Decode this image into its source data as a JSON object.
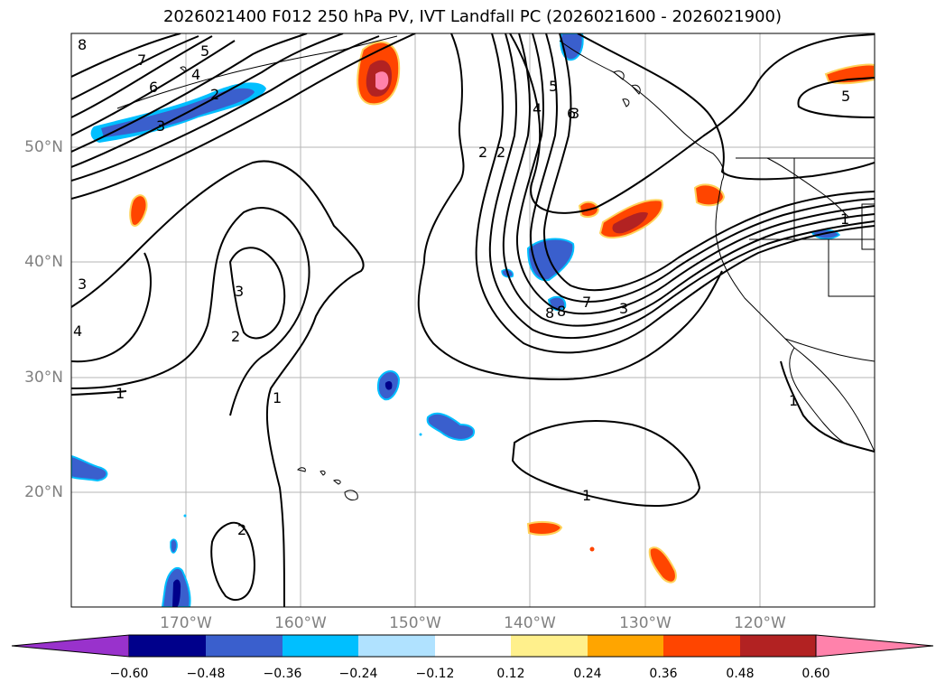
{
  "title": "2026021400 F012 250 hPa PV, IVT Landfall PC (2026021600 - 2026021900)",
  "lat_labels": [
    "50°N",
    "40°N",
    "30°N",
    "20°N"
  ],
  "lon_labels": [
    "170°W",
    "160°W",
    "150°W",
    "140°W",
    "130°W",
    "120°W"
  ],
  "contour_labels": [
    "8",
    "7",
    "6",
    "5",
    "4",
    "2",
    "3",
    "2",
    "3",
    "2",
    "1",
    "1",
    "2",
    "3",
    "4",
    "3",
    "2",
    "4",
    "5",
    "6",
    "8",
    "7",
    "3",
    "8",
    "1",
    "1",
    "5",
    "1"
  ],
  "colorbar": {
    "ticks": [
      "−0.60",
      "−0.48",
      "−0.36",
      "−0.24",
      "−0.12",
      "0.12",
      "0.24",
      "0.36",
      "0.48",
      "0.60"
    ],
    "colors": [
      "#9932cc",
      "#00008b",
      "#3a5fcd",
      "#00bfff",
      "#b0e2ff",
      "#ffffff",
      "#fff08c",
      "#ffa500",
      "#ff4500",
      "#b22222",
      "#ff82ab",
      "#ff82ab"
    ]
  }
}
